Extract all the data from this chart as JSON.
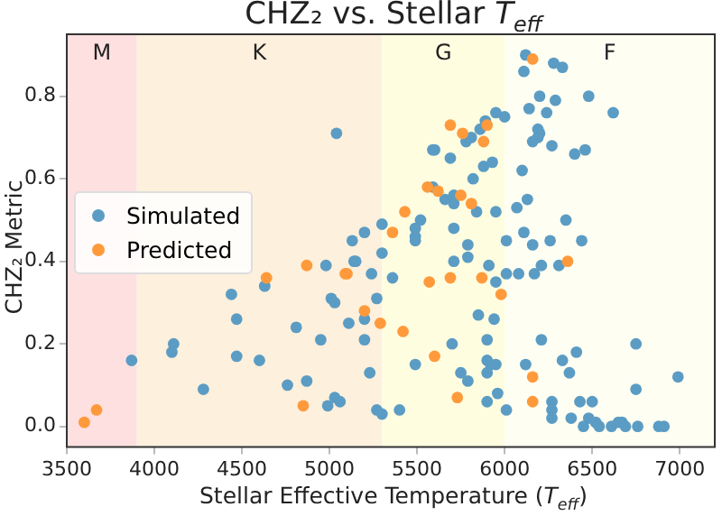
{
  "chart_data": {
    "type": "scatter",
    "title": "CHZ₂ vs. Stellar T$_{eff}$",
    "xlabel": "Stellar Effective Temperature (T$_{eff}$)",
    "ylabel": "CHZ₂ Metric",
    "xlim": [
      3500,
      7200
    ],
    "ylim": [
      -0.05,
      0.95
    ],
    "xticks": [
      3500,
      4000,
      4500,
      5000,
      5500,
      6000,
      6500,
      7000
    ],
    "yticks": [
      {
        "value": 0,
        "label": "0.0"
      },
      0.2,
      0.4,
      0.6,
      0.8
    ],
    "grid": false,
    "legend": "left",
    "marker": "circle",
    "bands": [
      {
        "axis": "x",
        "from": 3500,
        "to": 3900,
        "label": "M",
        "color": "#ffe0e0"
      },
      {
        "axis": "x",
        "from": 3900,
        "to": 5300,
        "label": "K",
        "color": "#fdf0dc"
      },
      {
        "axis": "x",
        "from": 5300,
        "to": 6000,
        "label": "G",
        "color": "#fffde0"
      },
      {
        "axis": "x",
        "from": 6000,
        "to": 7200,
        "label": "F",
        "color": "#fffef2"
      }
    ],
    "series": [
      {
        "name": "Simulated",
        "color": "#5b9cc4",
        "x": [
          5040,
          3870,
          4110,
          4100,
          4280,
          4440,
          4470,
          4470,
          4630,
          4600,
          4810,
          4760,
          4870,
          4980,
          4950,
          5010,
          5030,
          4990,
          5030,
          5060,
          5110,
          5130,
          5140,
          5150,
          5200,
          5300,
          5300,
          5240,
          5270,
          5200,
          5200,
          5230,
          5270,
          5300,
          5400,
          5360,
          5490,
          5520,
          5490,
          5490,
          5490,
          5590,
          5600,
          5590,
          5660,
          5710,
          5710,
          5690,
          5780,
          5810,
          5860,
          5890,
          5950,
          6000,
          5880,
          5930,
          5820,
          5840,
          5950,
          5710,
          5790,
          5790,
          5710,
          5910,
          5950,
          6010,
          6010,
          5850,
          5940,
          5900,
          5700,
          5900,
          5920,
          5950,
          5900,
          5750,
          5790,
          5960,
          5900,
          6010,
          6120,
          6110,
          6280,
          6330,
          6200,
          6290,
          6480,
          6620,
          6140,
          6240,
          6190,
          6200,
          6190,
          6160,
          6270,
          6400,
          6460,
          6100,
          6130,
          6070,
          6350,
          6110,
          6260,
          6440,
          6160,
          6210,
          6310,
          6170,
          6080,
          6210,
          6410,
          6750,
          6120,
          6330,
          6370,
          6990,
          6750,
          6270,
          6430,
          6500,
          6270,
          6270,
          6380,
          6480,
          6520,
          6540,
          6450,
          6610,
          6650,
          6670,
          6690,
          6760,
          6880,
          6910
        ],
        "values": [
          0.71,
          0.16,
          0.2,
          0.18,
          0.09,
          0.32,
          0.26,
          0.17,
          0.34,
          0.16,
          0.24,
          0.1,
          0.11,
          0.39,
          0.21,
          0.31,
          0.3,
          0.05,
          0.07,
          0.06,
          0.25,
          0.45,
          0.4,
          0.4,
          0.47,
          0.49,
          0.42,
          0.37,
          0.31,
          0.26,
          0.21,
          0.13,
          0.04,
          0.03,
          0.04,
          0.36,
          0.45,
          0.5,
          0.48,
          0.46,
          0.15,
          0.67,
          0.67,
          0.58,
          0.55,
          0.54,
          0.56,
          0.65,
          0.69,
          0.7,
          0.72,
          0.74,
          0.76,
          0.75,
          0.63,
          0.64,
          0.6,
          0.52,
          0.52,
          0.48,
          0.44,
          0.41,
          0.4,
          0.39,
          0.35,
          0.45,
          0.37,
          0.27,
          0.26,
          0.21,
          0.2,
          0.16,
          0.15,
          0.15,
          0.13,
          0.13,
          0.11,
          0.08,
          0.06,
          0.04,
          0.9,
          0.86,
          0.88,
          0.87,
          0.8,
          0.79,
          0.8,
          0.76,
          0.77,
          0.76,
          0.72,
          0.71,
          0.7,
          0.69,
          0.68,
          0.66,
          0.67,
          0.62,
          0.55,
          0.53,
          0.5,
          0.47,
          0.45,
          0.45,
          0.44,
          0.39,
          0.39,
          0.37,
          0.37,
          0.21,
          0.18,
          0.2,
          0.15,
          0.16,
          0.13,
          0.12,
          0.09,
          0.06,
          0.06,
          0.06,
          0.04,
          0.02,
          0.02,
          0.02,
          0.01,
          0.0,
          0.0,
          0.0,
          0.01,
          0.01,
          0.0,
          0.0,
          0.0,
          0.0
        ]
      },
      {
        "name": "Predicted",
        "color": "#ff9a3c",
        "x": [
          3600,
          3670,
          4640,
          4870,
          4850,
          5090,
          5100,
          5200,
          5290,
          5420,
          5360,
          5430,
          5560,
          5620,
          5690,
          5760,
          5880,
          5900,
          5750,
          5810,
          5570,
          5690,
          5870,
          5980,
          5600,
          5730,
          6160,
          6160,
          6360,
          6160
        ],
        "values": [
          0.01,
          0.04,
          0.36,
          0.39,
          0.05,
          0.37,
          0.37,
          0.28,
          0.25,
          0.23,
          0.47,
          0.52,
          0.58,
          0.57,
          0.73,
          0.71,
          0.69,
          0.73,
          0.56,
          0.54,
          0.35,
          0.36,
          0.36,
          0.32,
          0.17,
          0.07,
          0.12,
          0.06,
          0.4,
          0.89
        ]
      }
    ]
  }
}
